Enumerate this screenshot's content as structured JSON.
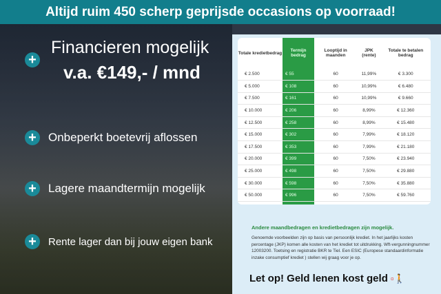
{
  "banner": "Altijd ruim 450 scherp geprijsde occasions op voorraad!",
  "left": {
    "headline": "Financieren mogelijk",
    "price": "v.a. €149,- / mnd",
    "bullets": [
      "Onbeperkt boetevrij aflossen",
      "Lagere maandtermijn mogelijk",
      "Rente lager dan bij jouw eigen bank"
    ]
  },
  "table": {
    "headers": [
      "Totale kredietbedrag",
      "Termijn bedrag",
      "Looptijd in maanden",
      "JPK (rente)",
      "Totale te betalen bedrag"
    ],
    "rows": [
      [
        "€ 2.500",
        "€ 55",
        "60",
        "11,99%",
        "€ 3.300"
      ],
      [
        "€ 5.000",
        "€ 108",
        "60",
        "10,99%",
        "€ 6.480"
      ],
      [
        "€ 7.500",
        "€ 161",
        "60",
        "10,99%",
        "€ 9.660"
      ],
      [
        "€ 10.000",
        "€ 206",
        "60",
        "8,99%",
        "€ 12.360"
      ],
      [
        "€ 12.500",
        "€ 258",
        "60",
        "8,99%",
        "€ 15.480"
      ],
      [
        "€ 15.000",
        "€ 302",
        "60",
        "7,99%",
        "€ 18.120"
      ],
      [
        "€ 17.500",
        "€ 353",
        "60",
        "7,99%",
        "€ 21.180"
      ],
      [
        "€ 20.000",
        "€ 399",
        "60",
        "7,50%",
        "€ 23.940"
      ],
      [
        "€ 25.000",
        "€ 498",
        "60",
        "7,50%",
        "€ 29.880"
      ],
      [
        "€ 30.000",
        "€ 598",
        "60",
        "7,50%",
        "€ 35.880"
      ],
      [
        "€ 50.000",
        "€ 996",
        "60",
        "7,50%",
        "€ 59.760"
      ]
    ]
  },
  "note_heading": "Andere maandbedragen en kredietbedragen zijn mogelijk.",
  "note_body": "Genoemde voorbeelden zijn op basis van persoonlijk krediet. In het jaarlijks kosten percentage (JKP) komen alle kosten van het krediet tot uitdrukking. Wft-vergunningnummer 12003200. Toetsing en registratie BKR te Tiel. Een ESIC (Europese standaardinformatie inzake consumptief krediet ) stellen wij graag voor je op.",
  "warning": "Let op! Geld lenen kost geld",
  "colors": {
    "banner": "#127e8c",
    "green": "#2a9b45"
  }
}
